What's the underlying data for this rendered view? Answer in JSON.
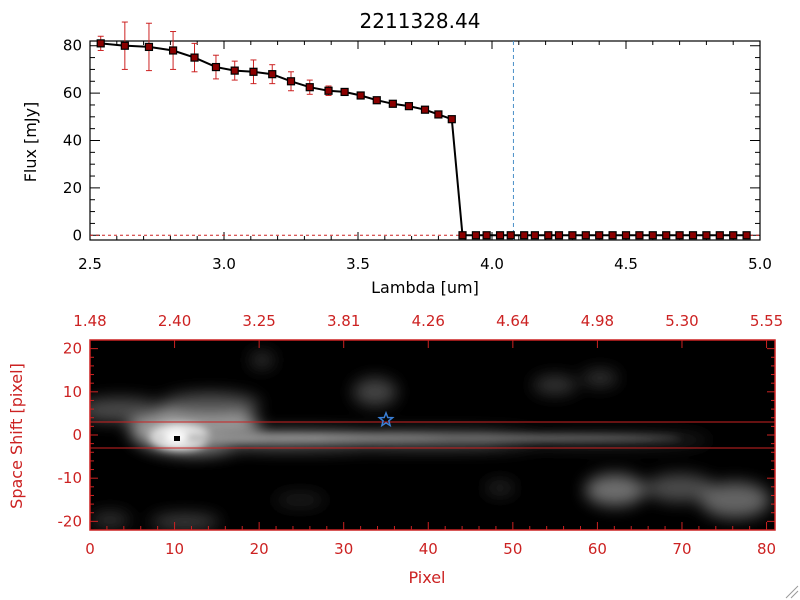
{
  "chart_data": [
    {
      "type": "line",
      "title": "2211328.44",
      "xlabel": "Lambda [um]",
      "ylabel": "Flux [mJy]",
      "xlim": [
        2.5,
        5.0
      ],
      "ylim": [
        -2,
        82
      ],
      "x_ticks": [
        "2.5",
        "3.0",
        "3.5",
        "4.0",
        "4.5",
        "5.0"
      ],
      "y_ticks": [
        "0",
        "20",
        "40",
        "60",
        "80"
      ],
      "marker_line_x": 4.08,
      "colors": {
        "line": "#000000",
        "marker": "#8b0000",
        "error": "#cc2222",
        "marker_line": "#4a90c8"
      },
      "series": [
        {
          "x": [
            2.54,
            2.63,
            2.72,
            2.81,
            2.89,
            2.97,
            3.04,
            3.11,
            3.18,
            3.25,
            3.32,
            3.39,
            3.45,
            3.51,
            3.57,
            3.63,
            3.69,
            3.75,
            3.8,
            3.85,
            3.89,
            3.94,
            3.98,
            4.03,
            4.07,
            4.12,
            4.16,
            4.21,
            4.25,
            4.3,
            4.35,
            4.4,
            4.45,
            4.5,
            4.55,
            4.6,
            4.65,
            4.7,
            4.75,
            4.8,
            4.85,
            4.9,
            4.95
          ],
          "y": [
            81,
            80,
            79.5,
            78,
            75,
            71,
            69.5,
            69,
            68,
            65,
            62.5,
            61,
            60.5,
            59,
            57,
            55.5,
            54.5,
            53,
            51,
            49,
            0,
            0,
            0,
            0,
            0,
            0,
            0,
            0,
            0,
            0,
            0,
            0,
            0,
            0,
            0,
            0,
            0,
            0,
            0,
            0,
            0,
            0,
            0
          ],
          "yerr": [
            3,
            10,
            10,
            8,
            6,
            5,
            4,
            5,
            4,
            4,
            3,
            2,
            1,
            1,
            1,
            1,
            1,
            1,
            1,
            1,
            0,
            0,
            0,
            0,
            0,
            0,
            0,
            0,
            0,
            0,
            0,
            0,
            0,
            0,
            0,
            0,
            0,
            0,
            0,
            0,
            0,
            0,
            0
          ]
        }
      ]
    },
    {
      "type": "heatmap",
      "xlabel": "Pixel",
      "ylabel": "Space Shift [pixel]",
      "xlim": [
        0,
        81
      ],
      "ylim": [
        -22,
        22
      ],
      "x_ticks": [
        "0",
        "10",
        "20",
        "30",
        "40",
        "50",
        "60",
        "70",
        "80"
      ],
      "y_ticks": [
        "-20",
        "-10",
        "0",
        "10",
        "20"
      ],
      "top_ticks": [
        "1.48",
        "2.40",
        "3.25",
        "3.81",
        "4.26",
        "4.64",
        "4.98",
        "5.30",
        "5.55"
      ],
      "horizontal_lines_y": [
        3,
        -3
      ],
      "star_marker": {
        "x": 35,
        "y": 3.5
      },
      "bright_peak": {
        "x": 10,
        "y": -0.5
      },
      "colors": {
        "frame": "#cc2222",
        "background": "#000000",
        "star": "#3a7fd6",
        "lines": "#cc2222"
      }
    }
  ]
}
